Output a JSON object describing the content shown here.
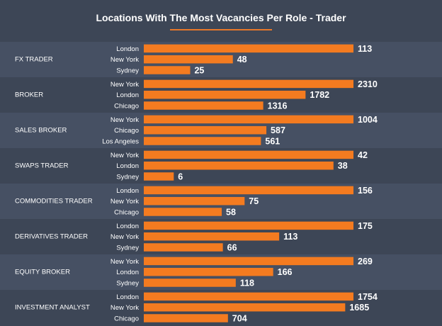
{
  "chart_data": {
    "type": "bar",
    "orientation": "horizontal",
    "title": "Locations With The Most Vacancies Per Role - Trader",
    "colors": {
      "bar": "#f47b20",
      "background": "#3d4656",
      "band": "#465063",
      "text": "#ffffff",
      "accent": "#e8782a"
    },
    "groups": [
      {
        "role": "FX TRADER",
        "items": [
          {
            "location": "London",
            "value": 113
          },
          {
            "location": "New York",
            "value": 48
          },
          {
            "location": "Sydney",
            "value": 25
          }
        ]
      },
      {
        "role": "BROKER",
        "items": [
          {
            "location": "New York",
            "value": 2310
          },
          {
            "location": "London",
            "value": 1782
          },
          {
            "location": "Chicago",
            "value": 1316
          }
        ]
      },
      {
        "role": "SALES BROKER",
        "items": [
          {
            "location": "New York",
            "value": 1004
          },
          {
            "location": "Chicago",
            "value": 587
          },
          {
            "location": "Los Angeles",
            "value": 561
          }
        ]
      },
      {
        "role": "SWAPS TRADER",
        "items": [
          {
            "location": "New York",
            "value": 42
          },
          {
            "location": "London",
            "value": 38
          },
          {
            "location": "Sydney",
            "value": 6
          }
        ]
      },
      {
        "role": "COMMODITIES TRADER",
        "items": [
          {
            "location": "London",
            "value": 156
          },
          {
            "location": "New York",
            "value": 75
          },
          {
            "location": "Chicago",
            "value": 58
          }
        ]
      },
      {
        "role": "DERIVATIVES TRADER",
        "items": [
          {
            "location": "London",
            "value": 175
          },
          {
            "location": "New York",
            "value": 113
          },
          {
            "location": "Sydney",
            "value": 66
          }
        ]
      },
      {
        "role": "EQUITY BROKER",
        "items": [
          {
            "location": "New York",
            "value": 269
          },
          {
            "location": "London",
            "value": 166
          },
          {
            "location": "Sydney",
            "value": 118
          }
        ]
      },
      {
        "role": "INVESTMENT ANALYST",
        "items": [
          {
            "location": "London",
            "value": 1754
          },
          {
            "location": "New York",
            "value": 1685
          },
          {
            "location": "Chicago",
            "value": 704
          }
        ]
      }
    ]
  }
}
